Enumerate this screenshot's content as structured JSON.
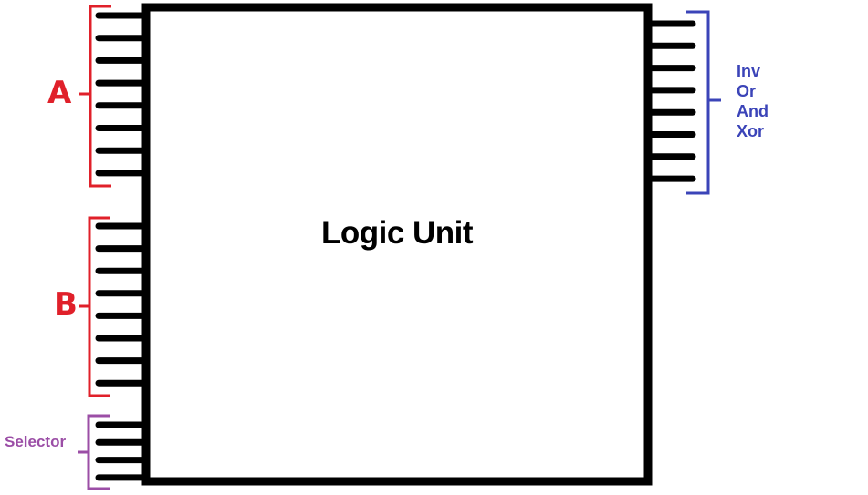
{
  "block": {
    "title": "Logic Unit"
  },
  "inputs": {
    "a": {
      "label": "A",
      "pins": 8,
      "color": "#e0202a"
    },
    "b": {
      "label": "B",
      "pins": 8,
      "color": "#e0202a"
    },
    "selector": {
      "label": "Selector",
      "pins": 4,
      "color": "#9b4ea6"
    }
  },
  "outputs": {
    "pins": 8,
    "color": "#3b44b8",
    "labels": [
      "Inv",
      "Or",
      "And",
      "Xor"
    ]
  },
  "colors": {
    "block": "#000000",
    "pin": "#000000",
    "background": "#ffffff"
  }
}
